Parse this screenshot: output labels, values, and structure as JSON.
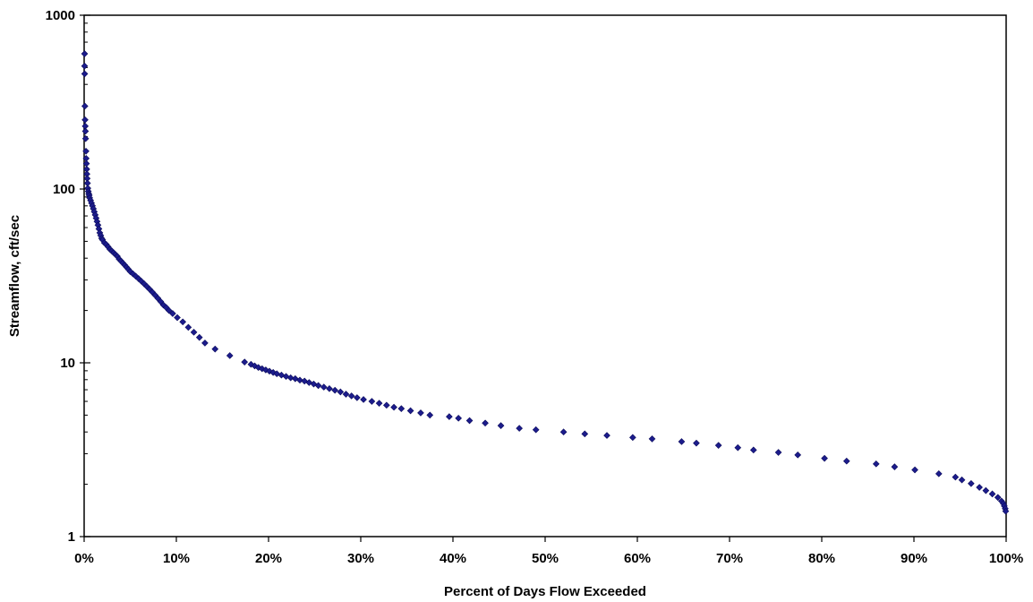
{
  "chart_data": {
    "type": "scatter",
    "title": "",
    "xlabel": "Percent of Days Flow Exceeded",
    "ylabel": "Streamflow, cft/sec",
    "x_unit": "percent",
    "y_scale": "log",
    "xlim": [
      0,
      100
    ],
    "ylim": [
      1,
      1000
    ],
    "grid": false,
    "legend": "none",
    "marker": "diamond",
    "marker_color": "#1c1c8c",
    "x_ticks": [
      {
        "value": 0,
        "label": "0%"
      },
      {
        "value": 10,
        "label": "10%"
      },
      {
        "value": 20,
        "label": "20%"
      },
      {
        "value": 30,
        "label": "30%"
      },
      {
        "value": 40,
        "label": "40%"
      },
      {
        "value": 50,
        "label": "50%"
      },
      {
        "value": 60,
        "label": "60%"
      },
      {
        "value": 70,
        "label": "70%"
      },
      {
        "value": 80,
        "label": "80%"
      },
      {
        "value": 90,
        "label": "90%"
      },
      {
        "value": 100,
        "label": "100%"
      }
    ],
    "y_ticks": [
      {
        "value": 1,
        "label": "1"
      },
      {
        "value": 10,
        "label": "10"
      },
      {
        "value": 100,
        "label": "100"
      },
      {
        "value": 1000,
        "label": "1000"
      }
    ],
    "series": [
      {
        "points": [
          [
            0.05,
            600
          ],
          [
            0.05,
            510
          ],
          [
            0.06,
            460
          ],
          [
            0.08,
            300
          ],
          [
            0.1,
            250
          ],
          [
            0.12,
            230
          ],
          [
            0.14,
            215
          ],
          [
            0.16,
            195
          ],
          [
            0.2,
            165
          ],
          [
            0.22,
            150
          ],
          [
            0.25,
            140
          ],
          [
            0.28,
            130
          ],
          [
            0.3,
            122
          ],
          [
            0.33,
            115
          ],
          [
            0.36,
            108
          ],
          [
            0.4,
            101
          ],
          [
            0.45,
            97
          ],
          [
            0.5,
            94
          ],
          [
            0.55,
            92
          ],
          [
            0.6,
            89
          ],
          [
            0.7,
            86
          ],
          [
            0.8,
            83
          ],
          [
            0.9,
            80
          ],
          [
            1.0,
            77
          ],
          [
            1.1,
            74
          ],
          [
            1.2,
            71
          ],
          [
            1.3,
            68
          ],
          [
            1.4,
            65
          ],
          [
            1.5,
            62
          ],
          [
            1.6,
            59
          ],
          [
            1.7,
            56
          ],
          [
            1.8,
            54
          ],
          [
            1.9,
            52
          ],
          [
            2.0,
            51
          ],
          [
            2.2,
            49
          ],
          [
            2.4,
            48
          ],
          [
            2.6,
            46.5
          ],
          [
            2.8,
            45
          ],
          [
            3.0,
            44
          ],
          [
            3.2,
            43
          ],
          [
            3.4,
            42
          ],
          [
            3.6,
            41
          ],
          [
            3.8,
            39.5
          ],
          [
            4.0,
            38.5
          ],
          [
            4.2,
            37.5
          ],
          [
            4.4,
            36.5
          ],
          [
            4.6,
            35.5
          ],
          [
            4.8,
            34.5
          ],
          [
            5.0,
            33.5
          ],
          [
            5.3,
            32.5
          ],
          [
            5.6,
            31.5
          ],
          [
            5.9,
            30.5
          ],
          [
            6.2,
            29.5
          ],
          [
            6.5,
            28.5
          ],
          [
            6.8,
            27.5
          ],
          [
            7.1,
            26.5
          ],
          [
            7.4,
            25.5
          ],
          [
            7.7,
            24.5
          ],
          [
            8.0,
            23.5
          ],
          [
            8.3,
            22.5
          ],
          [
            8.6,
            21.5
          ],
          [
            8.9,
            20.8
          ],
          [
            9.2,
            20.0
          ],
          [
            9.6,
            19.2
          ],
          [
            10.1,
            18.2
          ],
          [
            10.7,
            17.2
          ],
          [
            11.3,
            16.0
          ],
          [
            11.9,
            15.0
          ],
          [
            12.5,
            14.0
          ],
          [
            13.1,
            13.0
          ],
          [
            14.2,
            12.0
          ],
          [
            15.8,
            11.0
          ],
          [
            17.4,
            10.1
          ],
          [
            18.1,
            9.8
          ],
          [
            18.5,
            9.6
          ],
          [
            18.9,
            9.4
          ],
          [
            19.3,
            9.25
          ],
          [
            19.7,
            9.1
          ],
          [
            20.1,
            8.95
          ],
          [
            20.5,
            8.8
          ],
          [
            20.9,
            8.65
          ],
          [
            21.4,
            8.5
          ],
          [
            21.9,
            8.35
          ],
          [
            22.4,
            8.2
          ],
          [
            22.9,
            8.1
          ],
          [
            23.4,
            7.95
          ],
          [
            23.9,
            7.85
          ],
          [
            24.4,
            7.7
          ],
          [
            24.9,
            7.55
          ],
          [
            25.4,
            7.4
          ],
          [
            26.0,
            7.25
          ],
          [
            26.6,
            7.1
          ],
          [
            27.2,
            6.95
          ],
          [
            27.8,
            6.8
          ],
          [
            28.4,
            6.6
          ],
          [
            29.0,
            6.45
          ],
          [
            29.6,
            6.3
          ],
          [
            30.3,
            6.15
          ],
          [
            31.2,
            6.0
          ],
          [
            32.0,
            5.85
          ],
          [
            32.8,
            5.7
          ],
          [
            33.6,
            5.55
          ],
          [
            34.4,
            5.45
          ],
          [
            35.4,
            5.3
          ],
          [
            36.5,
            5.15
          ],
          [
            37.5,
            5.0
          ],
          [
            39.6,
            4.9
          ],
          [
            40.6,
            4.8
          ],
          [
            41.8,
            4.65
          ],
          [
            43.5,
            4.5
          ],
          [
            45.2,
            4.35
          ],
          [
            47.2,
            4.2
          ],
          [
            49.0,
            4.12
          ],
          [
            52.0,
            4.0
          ],
          [
            54.3,
            3.9
          ],
          [
            56.7,
            3.82
          ],
          [
            59.5,
            3.72
          ],
          [
            61.6,
            3.65
          ],
          [
            64.8,
            3.52
          ],
          [
            66.4,
            3.45
          ],
          [
            68.8,
            3.35
          ],
          [
            70.9,
            3.25
          ],
          [
            72.6,
            3.15
          ],
          [
            75.3,
            3.05
          ],
          [
            77.4,
            2.95
          ],
          [
            80.3,
            2.82
          ],
          [
            82.7,
            2.72
          ],
          [
            85.9,
            2.62
          ],
          [
            87.9,
            2.52
          ],
          [
            90.1,
            2.42
          ],
          [
            92.7,
            2.3
          ],
          [
            94.5,
            2.2
          ],
          [
            95.2,
            2.12
          ],
          [
            96.2,
            2.02
          ],
          [
            97.1,
            1.92
          ],
          [
            97.8,
            1.84
          ],
          [
            98.5,
            1.76
          ],
          [
            99.1,
            1.68
          ],
          [
            99.5,
            1.6
          ],
          [
            99.7,
            1.55
          ],
          [
            99.8,
            1.5
          ],
          [
            99.9,
            1.45
          ],
          [
            99.95,
            1.4
          ]
        ]
      }
    ]
  }
}
